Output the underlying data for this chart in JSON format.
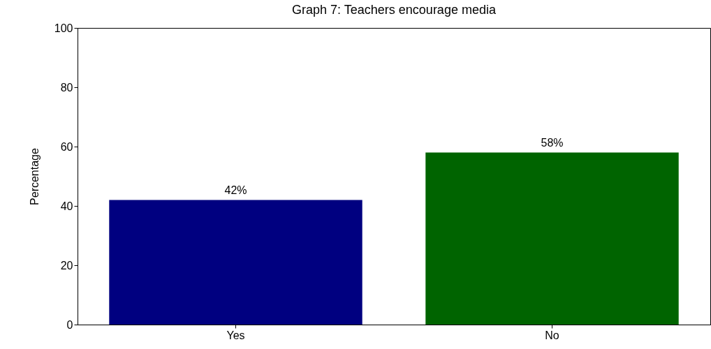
{
  "chart_data": {
    "type": "bar",
    "title": "Graph 7: Teachers encourage media",
    "ylabel": "Percentage",
    "categories": [
      "Yes",
      "No"
    ],
    "values": [
      42,
      58
    ],
    "colors": [
      "#000080",
      "#006400"
    ],
    "value_labels": [
      "42%",
      "58%"
    ],
    "ylim": [
      0,
      100
    ],
    "yticks": [
      0,
      20,
      40,
      60,
      80,
      100
    ],
    "grid": false,
    "legend": false
  }
}
